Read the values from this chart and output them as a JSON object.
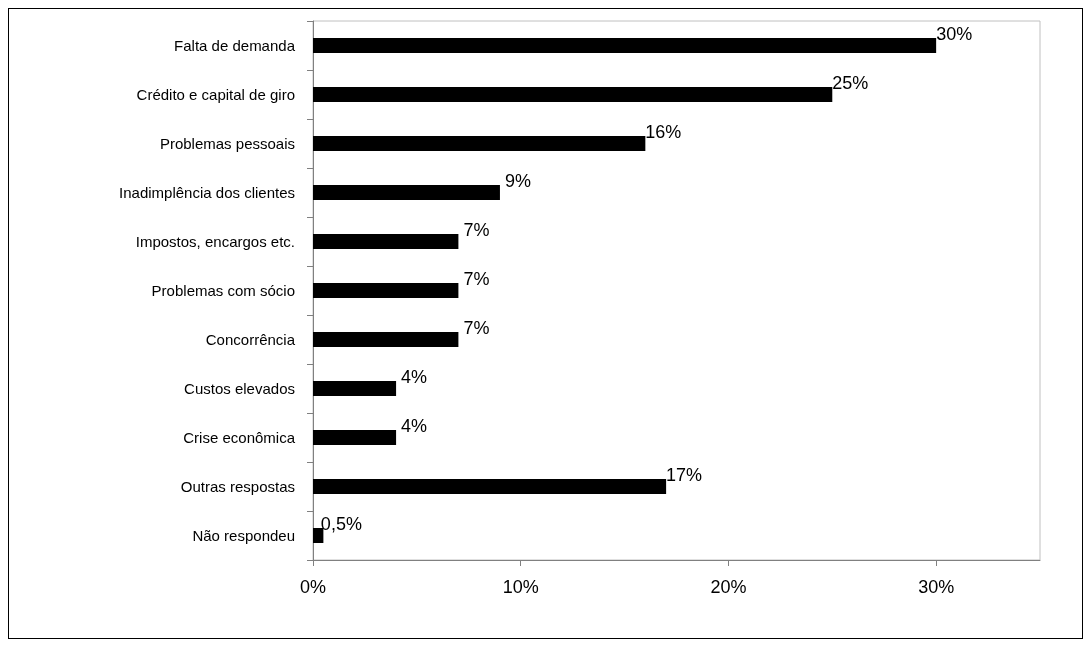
{
  "chart_data": {
    "type": "bar",
    "orientation": "horizontal",
    "categories": [
      "Falta de demanda",
      "Crédito e capital de giro",
      "Problemas pessoais",
      "Inadimplência dos clientes",
      "Impostos, encargos etc.",
      "Problemas com sócio",
      "Concorrência",
      "Custos elevados",
      "Crise econômica",
      "Outras respostas",
      "Não respondeu"
    ],
    "values": [
      30,
      25,
      16,
      9,
      7,
      7,
      7,
      4,
      4,
      17,
      0.5
    ],
    "value_labels": [
      "30%",
      "25%",
      "16%",
      "9%",
      "7%",
      "7%",
      "7%",
      "4%",
      "4%",
      "17%",
      "0,5%"
    ],
    "color": "#000000",
    "xlim": [
      0,
      35
    ],
    "xticks": [
      {
        "value": 0,
        "label": "0%"
      },
      {
        "value": 10,
        "label": "10%"
      },
      {
        "value": 20,
        "label": "20%"
      },
      {
        "value": 30,
        "label": "30%"
      }
    ],
    "grid": false
  }
}
